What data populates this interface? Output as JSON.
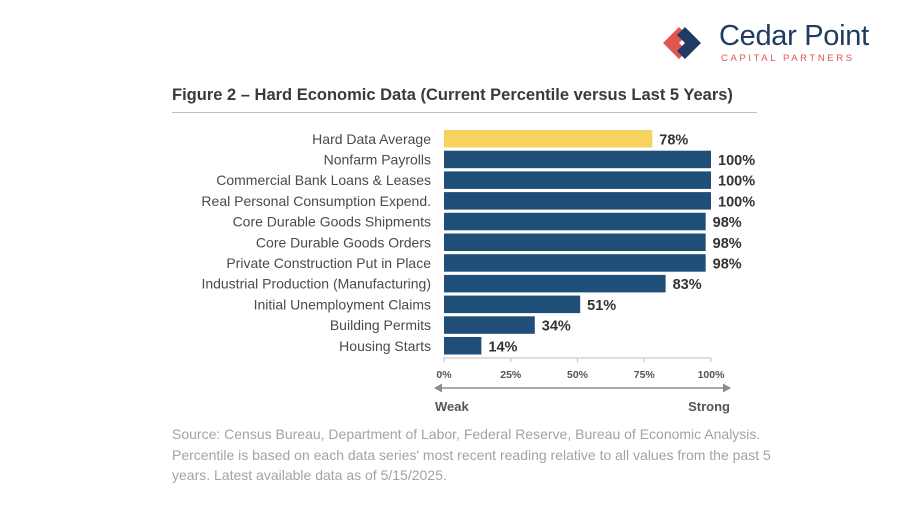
{
  "logo": {
    "name": "Cedar Point",
    "tagline": "CAPITAL PARTNERS",
    "colors": {
      "navy": "#1f3a63",
      "coral": "#e0564f"
    }
  },
  "figure_title": "Figure 2 – Hard Economic Data (Current Percentile versus Last 5 Years)",
  "chart_data": {
    "type": "bar",
    "orientation": "horizontal",
    "title": "Figure 2 – Hard Economic Data (Current Percentile versus Last 5 Years)",
    "categories": [
      "Hard Data Average",
      "Nonfarm Payrolls",
      "Commercial Bank Loans & Leases",
      "Real Personal Consumption Expend.",
      "Core Durable Goods Shipments",
      "Core Durable Goods Orders",
      "Private Construction Put in Place",
      "Industrial Production (Manufacturing)",
      "Initial Unemployment Claims",
      "Building Permits",
      "Housing Starts"
    ],
    "values": [
      78,
      100,
      100,
      100,
      98,
      98,
      98,
      83,
      51,
      34,
      14
    ],
    "value_labels": [
      "78%",
      "100%",
      "100%",
      "100%",
      "98%",
      "98%",
      "98%",
      "83%",
      "51%",
      "34%",
      "14%"
    ],
    "highlight_index": 0,
    "colors": {
      "bar": "#1f4e79",
      "highlight": "#f6d25e"
    },
    "xlim": [
      0,
      100
    ],
    "xticks": [
      0,
      25,
      50,
      75,
      100
    ],
    "xtick_labels": [
      "0%",
      "25%",
      "50%",
      "75%",
      "100%"
    ],
    "xlabel": "",
    "ylabel": "",
    "scale_labels": {
      "left": "Weak",
      "right": "Strong"
    },
    "grid": false
  },
  "source_note": "Source: Census Bureau, Department of Labor, Federal Reserve, Bureau of Economic Analysis. Percentile is based on each data series' most recent reading relative to all values from the past 5 years. Latest available data as of 5/15/2025."
}
